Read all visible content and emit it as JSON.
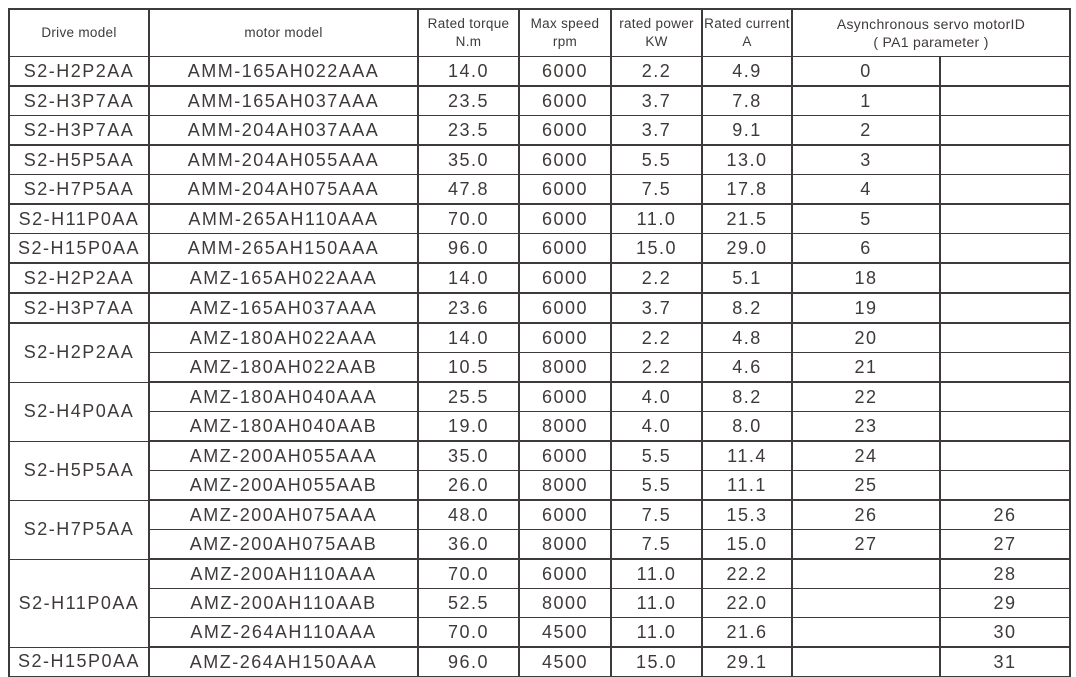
{
  "colors": {
    "ink": "#3e3a39",
    "background": "#ffffff"
  },
  "table": {
    "headers": {
      "drive": {
        "line1": "Drive model"
      },
      "motor": {
        "line1": "motor model"
      },
      "torque": {
        "line1": "Rated torque",
        "line2": "N.m"
      },
      "speed": {
        "line1": "Max speed",
        "line2": "rpm"
      },
      "power": {
        "line1": "rated power",
        "line2": "KW"
      },
      "current": {
        "line1": "Rated current",
        "line2": "A"
      },
      "motorid": {
        "line1": "Asynchronous servo motorID",
        "line2": "( PA1 parameter )"
      }
    },
    "rows": [
      {
        "drive": "S2-H2P2AA",
        "drive_rowspan": 1,
        "motor": "AMM-165AH022AAA",
        "torque": "14.0",
        "speed": "6000",
        "power": "2.2",
        "current": "4.9",
        "id1": "0",
        "id2": "",
        "thick_bottom": true
      },
      {
        "drive": "S2-H3P7AA",
        "drive_rowspan": 1,
        "motor": "AMM-165AH037AAA",
        "torque": "23.5",
        "speed": "6000",
        "power": "3.7",
        "current": "7.8",
        "id1": "1",
        "id2": "",
        "thick_bottom": false
      },
      {
        "drive": "S2-H3P7AA",
        "drive_rowspan": 1,
        "motor": "AMM-204AH037AAA",
        "torque": "23.5",
        "speed": "6000",
        "power": "3.7",
        "current": "9.1",
        "id1": "2",
        "id2": "",
        "thick_bottom": true
      },
      {
        "drive": "S2-H5P5AA",
        "drive_rowspan": 1,
        "motor": "AMM-204AH055AAA",
        "torque": "35.0",
        "speed": "6000",
        "power": "5.5",
        "current": "13.0",
        "id1": "3",
        "id2": "",
        "thick_bottom": false
      },
      {
        "drive": "S2-H7P5AA",
        "drive_rowspan": 1,
        "motor": "AMM-204AH075AAA",
        "torque": "47.8",
        "speed": "6000",
        "power": "7.5",
        "current": "17.8",
        "id1": "4",
        "id2": "",
        "thick_bottom": true
      },
      {
        "drive": "S2-H11P0AA",
        "drive_rowspan": 1,
        "motor": "AMM-265AH110AAA",
        "torque": "70.0",
        "speed": "6000",
        "power": "11.0",
        "current": "21.5",
        "id1": "5",
        "id2": "",
        "thick_bottom": false
      },
      {
        "drive": "S2-H15P0AA",
        "drive_rowspan": 1,
        "motor": "AMM-265AH150AAA",
        "torque": "96.0",
        "speed": "6000",
        "power": "15.0",
        "current": "29.0",
        "id1": "6",
        "id2": "",
        "thick_bottom": true
      },
      {
        "drive": "S2-H2P2AA",
        "drive_rowspan": 1,
        "motor": "AMZ-165AH022AAA",
        "torque": "14.0",
        "speed": "6000",
        "power": "2.2",
        "current": "5.1",
        "id1": "18",
        "id2": "",
        "thick_bottom": true
      },
      {
        "drive": "S2-H3P7AA",
        "drive_rowspan": 1,
        "motor": "AMZ-165AH037AAA",
        "torque": "23.6",
        "speed": "6000",
        "power": "3.7",
        "current": "8.2",
        "id1": "19",
        "id2": "",
        "thick_bottom": true
      },
      {
        "drive": "S2-H2P2AA",
        "drive_rowspan": 2,
        "motor": "AMZ-180AH022AAA",
        "torque": "14.0",
        "speed": "6000",
        "power": "2.2",
        "current": "4.8",
        "id1": "20",
        "id2": "",
        "thick_bottom": false
      },
      {
        "motor": "AMZ-180AH022AAB",
        "torque": "10.5",
        "speed": "8000",
        "power": "2.2",
        "current": "4.6",
        "id1": "21",
        "id2": "",
        "thick_bottom": true
      },
      {
        "drive": "S2-H4P0AA",
        "drive_rowspan": 2,
        "motor": "AMZ-180AH040AAA",
        "torque": "25.5",
        "speed": "6000",
        "power": "4.0",
        "current": "8.2",
        "id1": "22",
        "id2": "",
        "thick_bottom": false
      },
      {
        "motor": "AMZ-180AH040AAB",
        "torque": "19.0",
        "speed": "8000",
        "power": "4.0",
        "current": "8.0",
        "id1": "23",
        "id2": "",
        "thick_bottom": true
      },
      {
        "drive": "S2-H5P5AA",
        "drive_rowspan": 2,
        "motor": "AMZ-200AH055AAA",
        "torque": "35.0",
        "speed": "6000",
        "power": "5.5",
        "current": "11.4",
        "id1": "24",
        "id2": "",
        "thick_bottom": false
      },
      {
        "motor": "AMZ-200AH055AAB",
        "torque": "26.0",
        "speed": "8000",
        "power": "5.5",
        "current": "11.1",
        "id1": "25",
        "id2": "",
        "thick_bottom": true
      },
      {
        "drive": "S2-H7P5AA",
        "drive_rowspan": 2,
        "motor": "AMZ-200AH075AAA",
        "torque": "48.0",
        "speed": "6000",
        "power": "7.5",
        "current": "15.3",
        "id1": "26",
        "id2": "26",
        "thick_bottom": false
      },
      {
        "motor": "AMZ-200AH075AAB",
        "torque": "36.0",
        "speed": "8000",
        "power": "7.5",
        "current": "15.0",
        "id1": "27",
        "id2": "27",
        "thick_bottom": true
      },
      {
        "drive": "S2-H11P0AA",
        "drive_rowspan": 3,
        "motor": "AMZ-200AH110AAA",
        "torque": "70.0",
        "speed": "6000",
        "power": "11.0",
        "current": "22.2",
        "id1": "",
        "id2": "28",
        "thick_bottom": false
      },
      {
        "motor": "AMZ-200AH110AAB",
        "torque": "52.5",
        "speed": "8000",
        "power": "11.0",
        "current": "22.0",
        "id1": "",
        "id2": "29",
        "thick_bottom": false
      },
      {
        "motor": "AMZ-264AH110AAA",
        "torque": "70.0",
        "speed": "4500",
        "power": "11.0",
        "current": "21.6",
        "id1": "",
        "id2": "30",
        "thick_bottom": true
      },
      {
        "drive": "S2-H15P0AA",
        "drive_rowspan": 1,
        "motor": "AMZ-264AH150AAA",
        "torque": "96.0",
        "speed": "4500",
        "power": "15.0",
        "current": "29.1",
        "id1": "",
        "id2": "31",
        "thick_bottom": true
      }
    ]
  }
}
